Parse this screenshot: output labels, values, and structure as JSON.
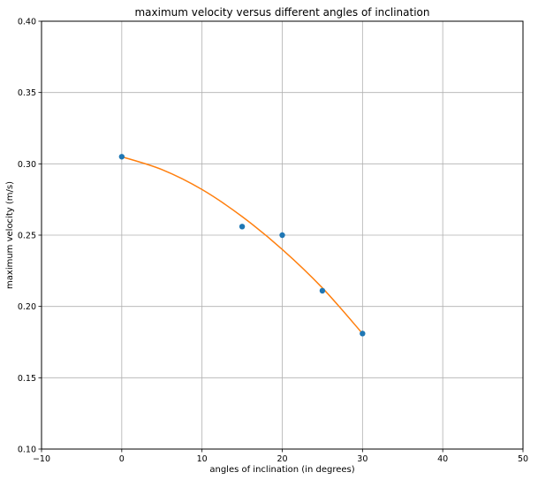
{
  "chart_data": {
    "type": "scatter",
    "title": "maximum velocity versus different angles of inclination",
    "xlabel": "angles of inclination  (in degrees)",
    "ylabel": "maximum velocity (m/s)",
    "xlim": [
      -10,
      50
    ],
    "ylim": [
      0.1,
      0.4
    ],
    "x_ticks": [
      "−10",
      "0",
      "10",
      "20",
      "30",
      "40",
      "50"
    ],
    "y_ticks": [
      "0.10",
      "0.15",
      "0.20",
      "0.25",
      "0.30",
      "0.35",
      "0.40"
    ],
    "grid": true,
    "series": [
      {
        "kind": "scatter",
        "color": "#1f77b4",
        "points": [
          {
            "x": 0,
            "y": 0.305
          },
          {
            "x": 15,
            "y": 0.256
          },
          {
            "x": 20,
            "y": 0.25
          },
          {
            "x": 25,
            "y": 0.211
          },
          {
            "x": 30,
            "y": 0.181
          }
        ]
      },
      {
        "kind": "line",
        "color": "#ff7f0e",
        "points": [
          {
            "x": 0,
            "y": 0.305
          },
          {
            "x": 5,
            "y": 0.296
          },
          {
            "x": 10,
            "y": 0.282
          },
          {
            "x": 15,
            "y": 0.263
          },
          {
            "x": 20,
            "y": 0.24
          },
          {
            "x": 25,
            "y": 0.213
          },
          {
            "x": 30,
            "y": 0.181
          }
        ]
      }
    ]
  }
}
